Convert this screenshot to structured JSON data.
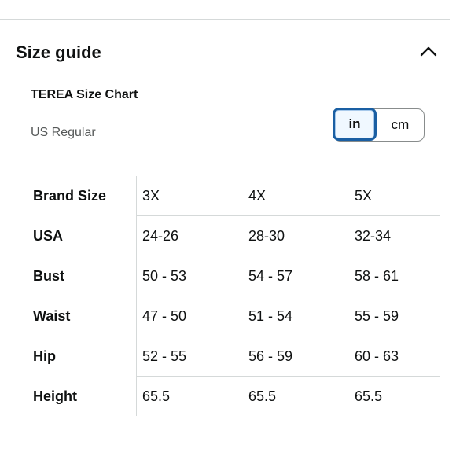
{
  "header": {
    "title": "Size guide",
    "collapse_icon": "chevron-up-icon"
  },
  "chart": {
    "title": "TEREA Size Chart",
    "fit": "US Regular"
  },
  "units": {
    "options": [
      "in",
      "cm"
    ],
    "selected": "in"
  },
  "table": {
    "rows": [
      {
        "label": "Brand Size",
        "values": [
          "3X",
          "4X",
          "5X"
        ]
      },
      {
        "label": "USA",
        "values": [
          "24-26",
          "28-30",
          "32-34"
        ]
      },
      {
        "label": "Bust",
        "values": [
          "50 - 53",
          "54 - 57",
          "58 - 61"
        ]
      },
      {
        "label": "Waist",
        "values": [
          "47 - 50",
          "51 - 54",
          "55 - 59"
        ]
      },
      {
        "label": "Hip",
        "values": [
          "52 - 55",
          "56 - 59",
          "60 - 63"
        ]
      },
      {
        "label": "Height",
        "values": [
          "65.5",
          "65.5",
          "65.5"
        ]
      }
    ]
  },
  "colors": {
    "selected_border": "#1a5fa3",
    "divider": "#d5d9d9",
    "muted_text": "#565959"
  }
}
